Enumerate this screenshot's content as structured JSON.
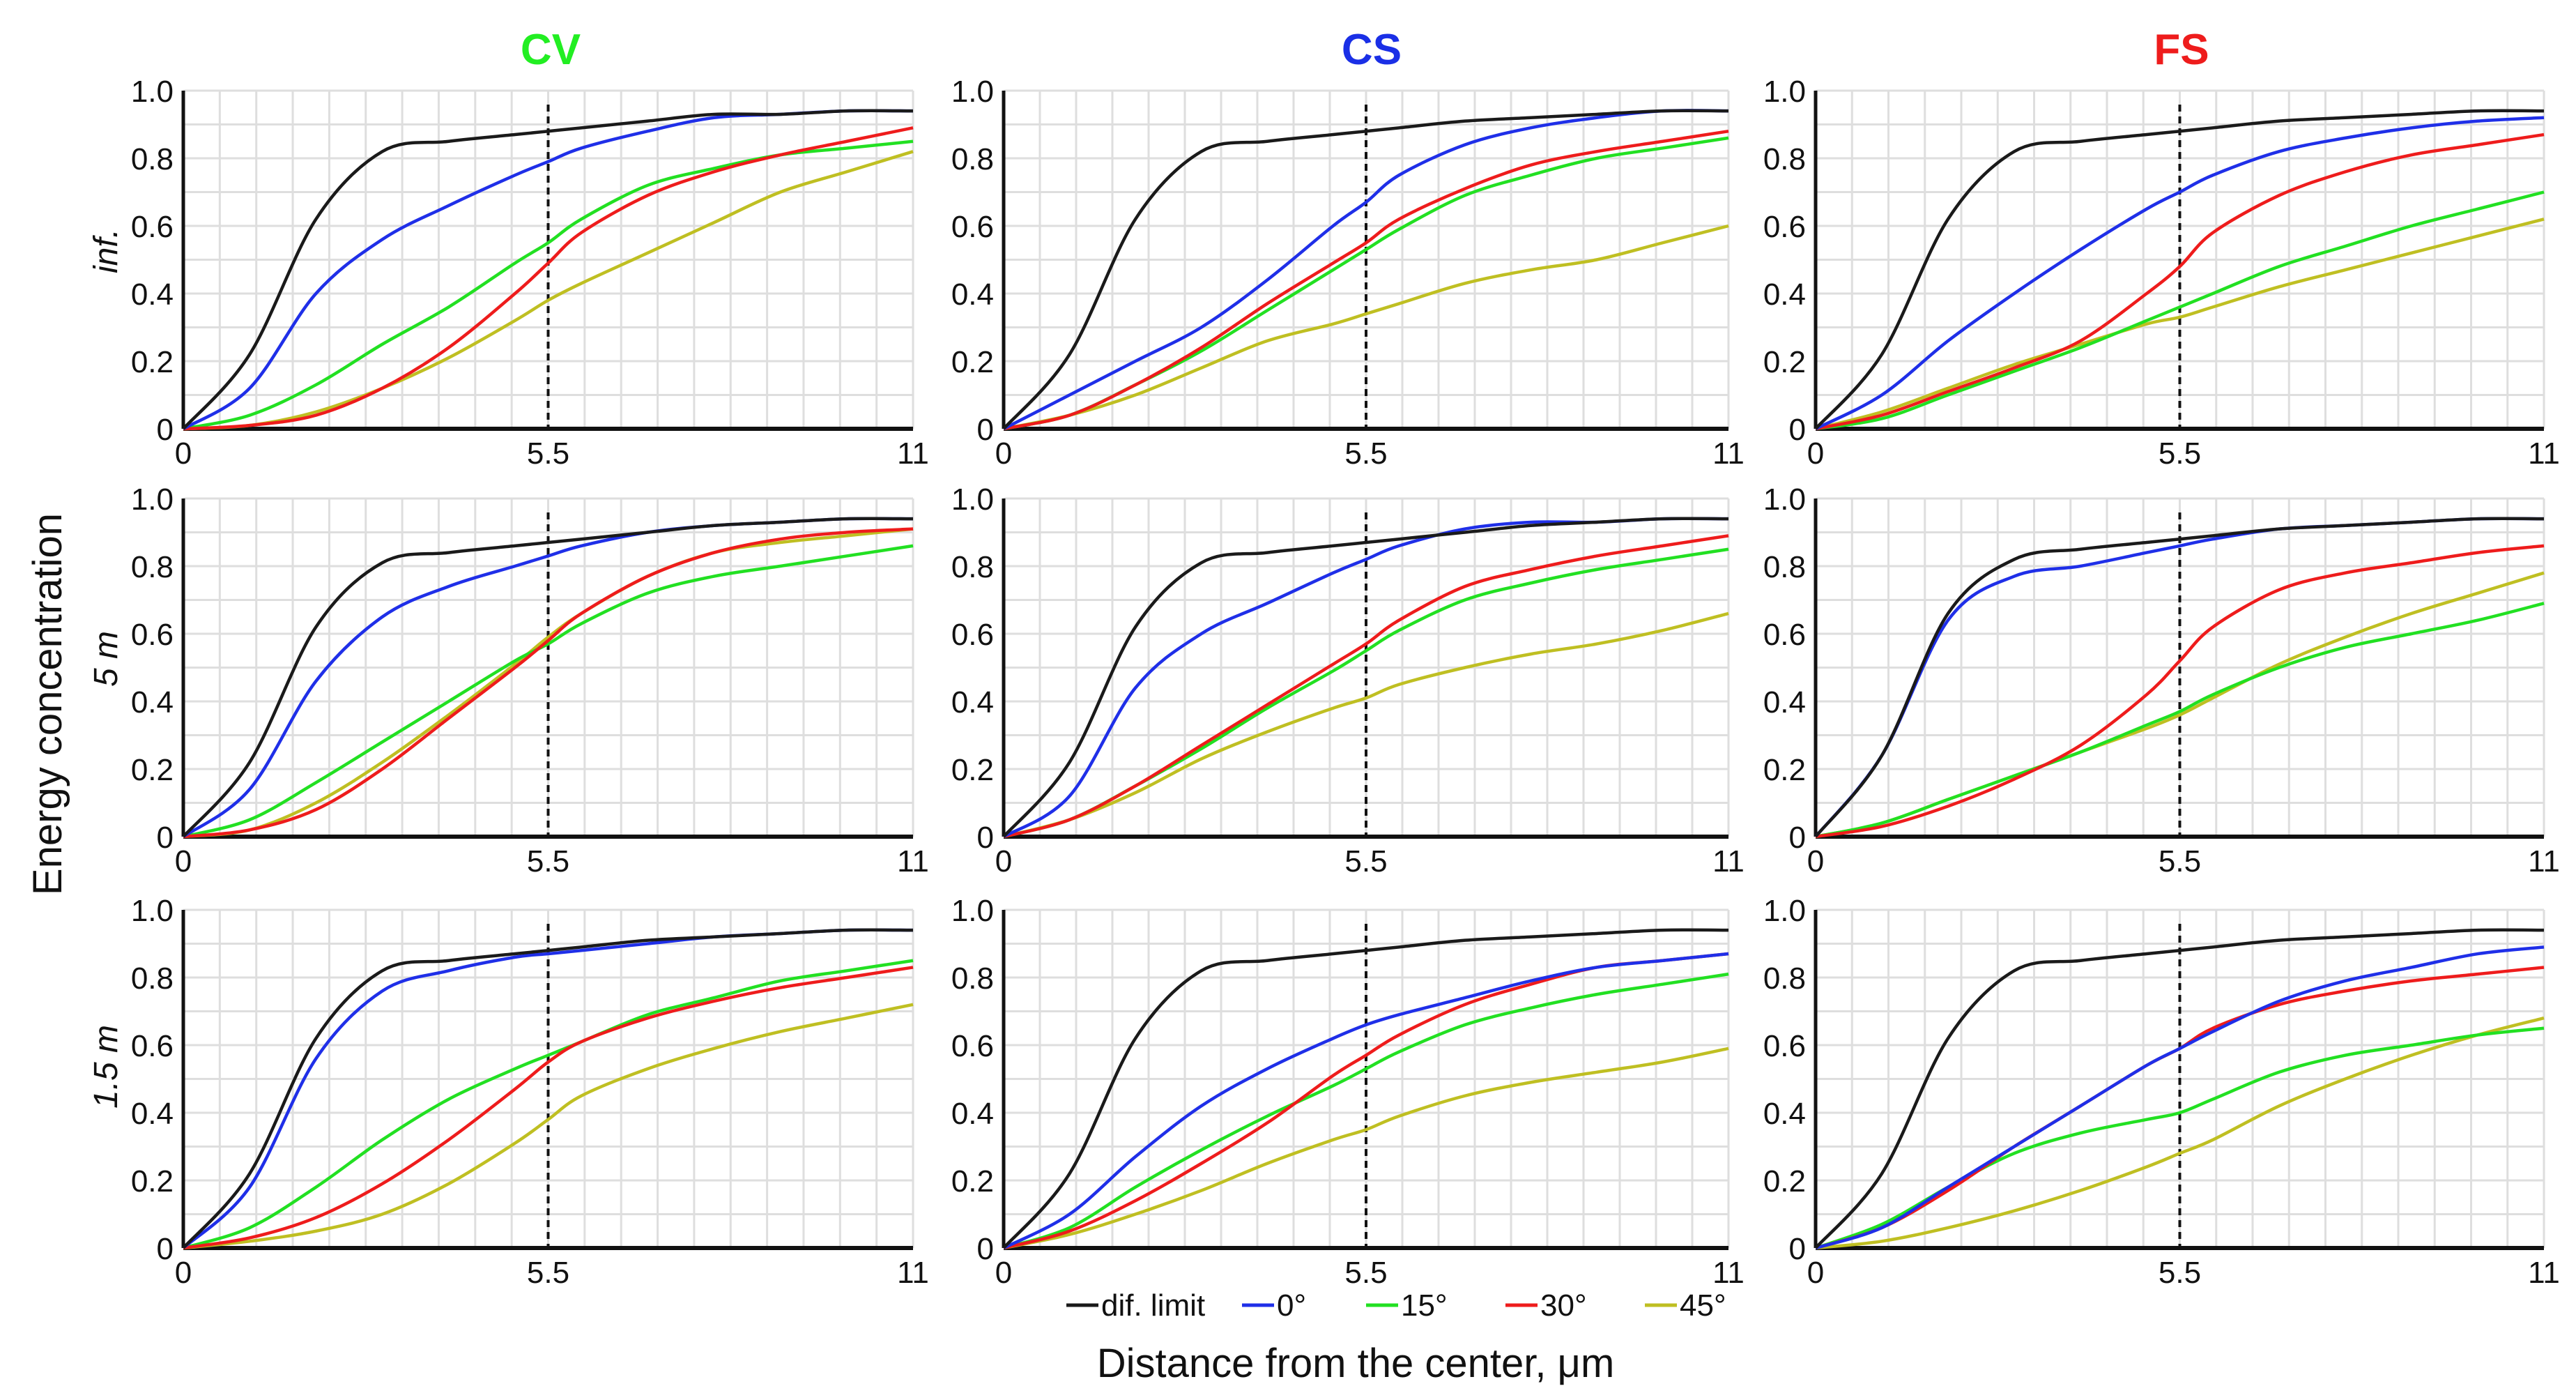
{
  "figure": {
    "column_titles": [
      "CV",
      "CS",
      "FS"
    ],
    "column_colors": [
      "#22ee22",
      "#1a2fe6",
      "#ee1c1c"
    ],
    "row_labels": [
      "inf.",
      "5 m",
      "1.5 m"
    ],
    "ylabel": "Energy concentration",
    "xlabel": "Distance from the center, μm",
    "legend": [
      "dif. limit",
      "0°",
      "15°",
      "30°",
      "45°"
    ],
    "series_colors": {
      "dif": "#1a1a1a",
      "d0": "#1f2fe8",
      "d15": "#22e022",
      "d30": "#ee1c1c",
      "d45": "#bfbf22"
    },
    "x_ticks": [
      "0",
      "5.5",
      "11"
    ],
    "y_ticks": [
      "0",
      "0.2",
      "0.4",
      "0.6",
      "0.8",
      "1.0"
    ]
  },
  "chart_data": [
    {
      "type": "line",
      "panel": "inf. CV",
      "xlim": [
        0,
        11
      ],
      "ylim": [
        0,
        1
      ],
      "reference_x": 5.5,
      "x": [
        0,
        1,
        2,
        3,
        4,
        5,
        5.5,
        6,
        7,
        8,
        9,
        10,
        11
      ],
      "series": [
        {
          "name": "dif. limit",
          "values": [
            0,
            0.22,
            0.62,
            0.82,
            0.85,
            0.87,
            0.88,
            0.89,
            0.91,
            0.93,
            0.93,
            0.94,
            0.94
          ]
        },
        {
          "name": "0°",
          "values": [
            0,
            0.12,
            0.4,
            0.56,
            0.66,
            0.75,
            0.79,
            0.83,
            0.88,
            0.92,
            0.93,
            0.94,
            0.94
          ]
        },
        {
          "name": "15°",
          "values": [
            0,
            0.04,
            0.13,
            0.25,
            0.36,
            0.49,
            0.55,
            0.62,
            0.72,
            0.77,
            0.81,
            0.83,
            0.85
          ]
        },
        {
          "name": "30°",
          "values": [
            0,
            0.01,
            0.04,
            0.12,
            0.24,
            0.4,
            0.49,
            0.58,
            0.69,
            0.76,
            0.81,
            0.85,
            0.89
          ]
        },
        {
          "name": "45°",
          "values": [
            0,
            0.01,
            0.05,
            0.12,
            0.21,
            0.32,
            0.38,
            0.43,
            0.52,
            0.61,
            0.7,
            0.76,
            0.82
          ]
        }
      ]
    },
    {
      "type": "line",
      "panel": "inf. CS",
      "xlim": [
        0,
        11
      ],
      "ylim": [
        0,
        1
      ],
      "reference_x": 5.5,
      "x": [
        0,
        1,
        2,
        3,
        4,
        5,
        5.5,
        6,
        7,
        8,
        9,
        10,
        11
      ],
      "series": [
        {
          "name": "dif. limit",
          "values": [
            0,
            0.22,
            0.62,
            0.82,
            0.85,
            0.87,
            0.88,
            0.89,
            0.91,
            0.92,
            0.93,
            0.94,
            0.94
          ]
        },
        {
          "name": "0°",
          "values": [
            0,
            0.1,
            0.2,
            0.3,
            0.44,
            0.6,
            0.67,
            0.75,
            0.84,
            0.89,
            0.92,
            0.94,
            0.94
          ]
        },
        {
          "name": "15°",
          "values": [
            0,
            0.04,
            0.13,
            0.23,
            0.35,
            0.47,
            0.53,
            0.59,
            0.69,
            0.75,
            0.8,
            0.83,
            0.86
          ]
        },
        {
          "name": "30°",
          "values": [
            0,
            0.04,
            0.13,
            0.24,
            0.37,
            0.49,
            0.55,
            0.62,
            0.71,
            0.78,
            0.82,
            0.85,
            0.88
          ]
        },
        {
          "name": "45°",
          "values": [
            0,
            0.04,
            0.1,
            0.18,
            0.26,
            0.31,
            0.34,
            0.37,
            0.43,
            0.47,
            0.5,
            0.55,
            0.6
          ]
        }
      ]
    },
    {
      "type": "line",
      "panel": "inf. FS",
      "xlim": [
        0,
        11
      ],
      "ylim": [
        0,
        1
      ],
      "reference_x": 5.5,
      "x": [
        0,
        1,
        2,
        3,
        4,
        5,
        5.5,
        6,
        7,
        8,
        9,
        10,
        11
      ],
      "series": [
        {
          "name": "dif. limit",
          "values": [
            0,
            0.22,
            0.62,
            0.82,
            0.85,
            0.87,
            0.88,
            0.89,
            0.91,
            0.92,
            0.93,
            0.94,
            0.94
          ]
        },
        {
          "name": "0°",
          "values": [
            0,
            0.1,
            0.26,
            0.4,
            0.53,
            0.65,
            0.7,
            0.75,
            0.82,
            0.86,
            0.89,
            0.91,
            0.92
          ]
        },
        {
          "name": "15°",
          "values": [
            0,
            0.03,
            0.1,
            0.17,
            0.24,
            0.32,
            0.36,
            0.4,
            0.48,
            0.54,
            0.6,
            0.65,
            0.7
          ]
        },
        {
          "name": "30°",
          "values": [
            0,
            0.04,
            0.11,
            0.18,
            0.26,
            0.4,
            0.48,
            0.58,
            0.69,
            0.76,
            0.81,
            0.84,
            0.87
          ]
        },
        {
          "name": "45°",
          "values": [
            0,
            0.05,
            0.12,
            0.19,
            0.25,
            0.31,
            0.33,
            0.36,
            0.42,
            0.47,
            0.52,
            0.57,
            0.62
          ]
        }
      ]
    },
    {
      "type": "line",
      "panel": "5 m CV",
      "xlim": [
        0,
        11
      ],
      "ylim": [
        0,
        1
      ],
      "reference_x": 5.5,
      "x": [
        0,
        1,
        2,
        3,
        4,
        5,
        5.5,
        6,
        7,
        8,
        9,
        10,
        11
      ],
      "series": [
        {
          "name": "dif. limit",
          "values": [
            0,
            0.22,
            0.62,
            0.81,
            0.84,
            0.86,
            0.87,
            0.88,
            0.9,
            0.92,
            0.93,
            0.94,
            0.94
          ]
        },
        {
          "name": "0°",
          "values": [
            0,
            0.14,
            0.46,
            0.65,
            0.74,
            0.8,
            0.83,
            0.86,
            0.9,
            0.92,
            0.93,
            0.94,
            0.94
          ]
        },
        {
          "name": "15°",
          "values": [
            0,
            0.05,
            0.16,
            0.28,
            0.4,
            0.52,
            0.57,
            0.63,
            0.72,
            0.77,
            0.8,
            0.83,
            0.86
          ]
        },
        {
          "name": "30°",
          "values": [
            0,
            0.02,
            0.08,
            0.2,
            0.35,
            0.5,
            0.58,
            0.66,
            0.77,
            0.84,
            0.88,
            0.9,
            0.91
          ]
        },
        {
          "name": "45°",
          "values": [
            0,
            0.02,
            0.1,
            0.22,
            0.36,
            0.51,
            0.59,
            0.66,
            0.77,
            0.84,
            0.87,
            0.89,
            0.91
          ]
        }
      ]
    },
    {
      "type": "line",
      "panel": "5 m CS",
      "xlim": [
        0,
        11
      ],
      "ylim": [
        0,
        1
      ],
      "reference_x": 5.5,
      "x": [
        0,
        1,
        2,
        3,
        4,
        5,
        5.5,
        6,
        7,
        8,
        9,
        10,
        11
      ],
      "series": [
        {
          "name": "dif. limit",
          "values": [
            0,
            0.22,
            0.62,
            0.81,
            0.84,
            0.86,
            0.87,
            0.88,
            0.9,
            0.92,
            0.93,
            0.94,
            0.94
          ]
        },
        {
          "name": "0°",
          "values": [
            0,
            0.12,
            0.44,
            0.6,
            0.69,
            0.78,
            0.82,
            0.86,
            0.91,
            0.93,
            0.93,
            0.94,
            0.94
          ]
        },
        {
          "name": "15°",
          "values": [
            0,
            0.05,
            0.15,
            0.26,
            0.38,
            0.49,
            0.55,
            0.61,
            0.7,
            0.75,
            0.79,
            0.82,
            0.85
          ]
        },
        {
          "name": "30°",
          "values": [
            0,
            0.05,
            0.15,
            0.27,
            0.39,
            0.51,
            0.57,
            0.64,
            0.74,
            0.79,
            0.83,
            0.86,
            0.89
          ]
        },
        {
          "name": "45°",
          "values": [
            0,
            0.05,
            0.13,
            0.23,
            0.31,
            0.38,
            0.41,
            0.45,
            0.5,
            0.54,
            0.57,
            0.61,
            0.66
          ]
        }
      ]
    },
    {
      "type": "line",
      "panel": "5 m FS",
      "xlim": [
        0,
        11
      ],
      "ylim": [
        0,
        1
      ],
      "reference_x": 5.5,
      "x": [
        0,
        1,
        2,
        3,
        4,
        5,
        5.5,
        6,
        7,
        8,
        9,
        10,
        11
      ],
      "series": [
        {
          "name": "dif. limit",
          "values": [
            0,
            0.24,
            0.66,
            0.82,
            0.85,
            0.87,
            0.88,
            0.89,
            0.91,
            0.92,
            0.93,
            0.94,
            0.94
          ]
        },
        {
          "name": "0°",
          "values": [
            0,
            0.24,
            0.64,
            0.77,
            0.8,
            0.84,
            0.86,
            0.88,
            0.91,
            0.92,
            0.93,
            0.94,
            0.94
          ]
        },
        {
          "name": "15°",
          "values": [
            0,
            0.04,
            0.11,
            0.18,
            0.25,
            0.33,
            0.37,
            0.42,
            0.5,
            0.56,
            0.6,
            0.64,
            0.69
          ]
        },
        {
          "name": "30°",
          "values": [
            0,
            0.03,
            0.09,
            0.17,
            0.27,
            0.42,
            0.52,
            0.62,
            0.73,
            0.78,
            0.81,
            0.84,
            0.86
          ]
        },
        {
          "name": "45°",
          "values": [
            0,
            0.04,
            0.11,
            0.18,
            0.25,
            0.32,
            0.36,
            0.41,
            0.51,
            0.59,
            0.66,
            0.72,
            0.78
          ]
        }
      ]
    },
    {
      "type": "line",
      "panel": "1.5 m CV",
      "xlim": [
        0,
        11
      ],
      "ylim": [
        0,
        1
      ],
      "reference_x": 5.5,
      "x": [
        0,
        1,
        2,
        3,
        4,
        5,
        5.5,
        6,
        7,
        8,
        9,
        10,
        11
      ],
      "series": [
        {
          "name": "dif. limit",
          "values": [
            0,
            0.22,
            0.62,
            0.82,
            0.85,
            0.87,
            0.88,
            0.89,
            0.91,
            0.92,
            0.93,
            0.94,
            0.94
          ]
        },
        {
          "name": "0°",
          "values": [
            0,
            0.18,
            0.56,
            0.76,
            0.82,
            0.86,
            0.87,
            0.88,
            0.9,
            0.92,
            0.93,
            0.94,
            0.94
          ]
        },
        {
          "name": "15°",
          "values": [
            0,
            0.06,
            0.18,
            0.32,
            0.44,
            0.53,
            0.57,
            0.61,
            0.69,
            0.74,
            0.79,
            0.82,
            0.85
          ]
        },
        {
          "name": "30°",
          "values": [
            0,
            0.03,
            0.09,
            0.19,
            0.32,
            0.47,
            0.55,
            0.61,
            0.68,
            0.73,
            0.77,
            0.8,
            0.83
          ]
        },
        {
          "name": "45°",
          "values": [
            0,
            0.02,
            0.05,
            0.1,
            0.19,
            0.31,
            0.38,
            0.45,
            0.53,
            0.59,
            0.64,
            0.68,
            0.72
          ]
        }
      ]
    },
    {
      "type": "line",
      "panel": "1.5 m CS",
      "xlim": [
        0,
        11
      ],
      "ylim": [
        0,
        1
      ],
      "reference_x": 5.5,
      "x": [
        0,
        1,
        2,
        3,
        4,
        5,
        5.5,
        6,
        7,
        8,
        9,
        10,
        11
      ],
      "series": [
        {
          "name": "dif. limit",
          "values": [
            0,
            0.22,
            0.62,
            0.82,
            0.85,
            0.87,
            0.88,
            0.89,
            0.91,
            0.92,
            0.93,
            0.94,
            0.94
          ]
        },
        {
          "name": "0°",
          "values": [
            0,
            0.1,
            0.27,
            0.42,
            0.53,
            0.62,
            0.66,
            0.69,
            0.74,
            0.79,
            0.83,
            0.85,
            0.87
          ]
        },
        {
          "name": "15°",
          "values": [
            0,
            0.06,
            0.18,
            0.29,
            0.39,
            0.48,
            0.53,
            0.58,
            0.66,
            0.71,
            0.75,
            0.78,
            0.81
          ]
        },
        {
          "name": "30°",
          "values": [
            0,
            0.05,
            0.14,
            0.25,
            0.37,
            0.51,
            0.57,
            0.63,
            0.72,
            0.78,
            0.83,
            0.85,
            0.87
          ]
        },
        {
          "name": "45°",
          "values": [
            0,
            0.04,
            0.1,
            0.17,
            0.25,
            0.32,
            0.35,
            0.39,
            0.45,
            0.49,
            0.52,
            0.55,
            0.59
          ]
        }
      ]
    },
    {
      "type": "line",
      "panel": "1.5 m FS",
      "xlim": [
        0,
        11
      ],
      "ylim": [
        0,
        1
      ],
      "reference_x": 5.5,
      "x": [
        0,
        1,
        2,
        3,
        4,
        5,
        5.5,
        6,
        7,
        8,
        9,
        10,
        11
      ],
      "series": [
        {
          "name": "dif. limit",
          "values": [
            0,
            0.22,
            0.62,
            0.82,
            0.85,
            0.87,
            0.88,
            0.89,
            0.91,
            0.92,
            0.93,
            0.94,
            0.94
          ]
        },
        {
          "name": "0°",
          "values": [
            0,
            0.06,
            0.18,
            0.3,
            0.42,
            0.54,
            0.59,
            0.64,
            0.73,
            0.79,
            0.83,
            0.87,
            0.89
          ]
        },
        {
          "name": "15°",
          "values": [
            0,
            0.07,
            0.18,
            0.28,
            0.34,
            0.38,
            0.4,
            0.44,
            0.52,
            0.57,
            0.6,
            0.63,
            0.65
          ]
        },
        {
          "name": "30°",
          "values": [
            0,
            0.06,
            0.17,
            0.3,
            0.42,
            0.54,
            0.59,
            0.65,
            0.72,
            0.76,
            0.79,
            0.81,
            0.83
          ]
        },
        {
          "name": "45°",
          "values": [
            0,
            0.02,
            0.06,
            0.11,
            0.17,
            0.24,
            0.28,
            0.32,
            0.42,
            0.5,
            0.57,
            0.63,
            0.68
          ]
        }
      ]
    }
  ]
}
